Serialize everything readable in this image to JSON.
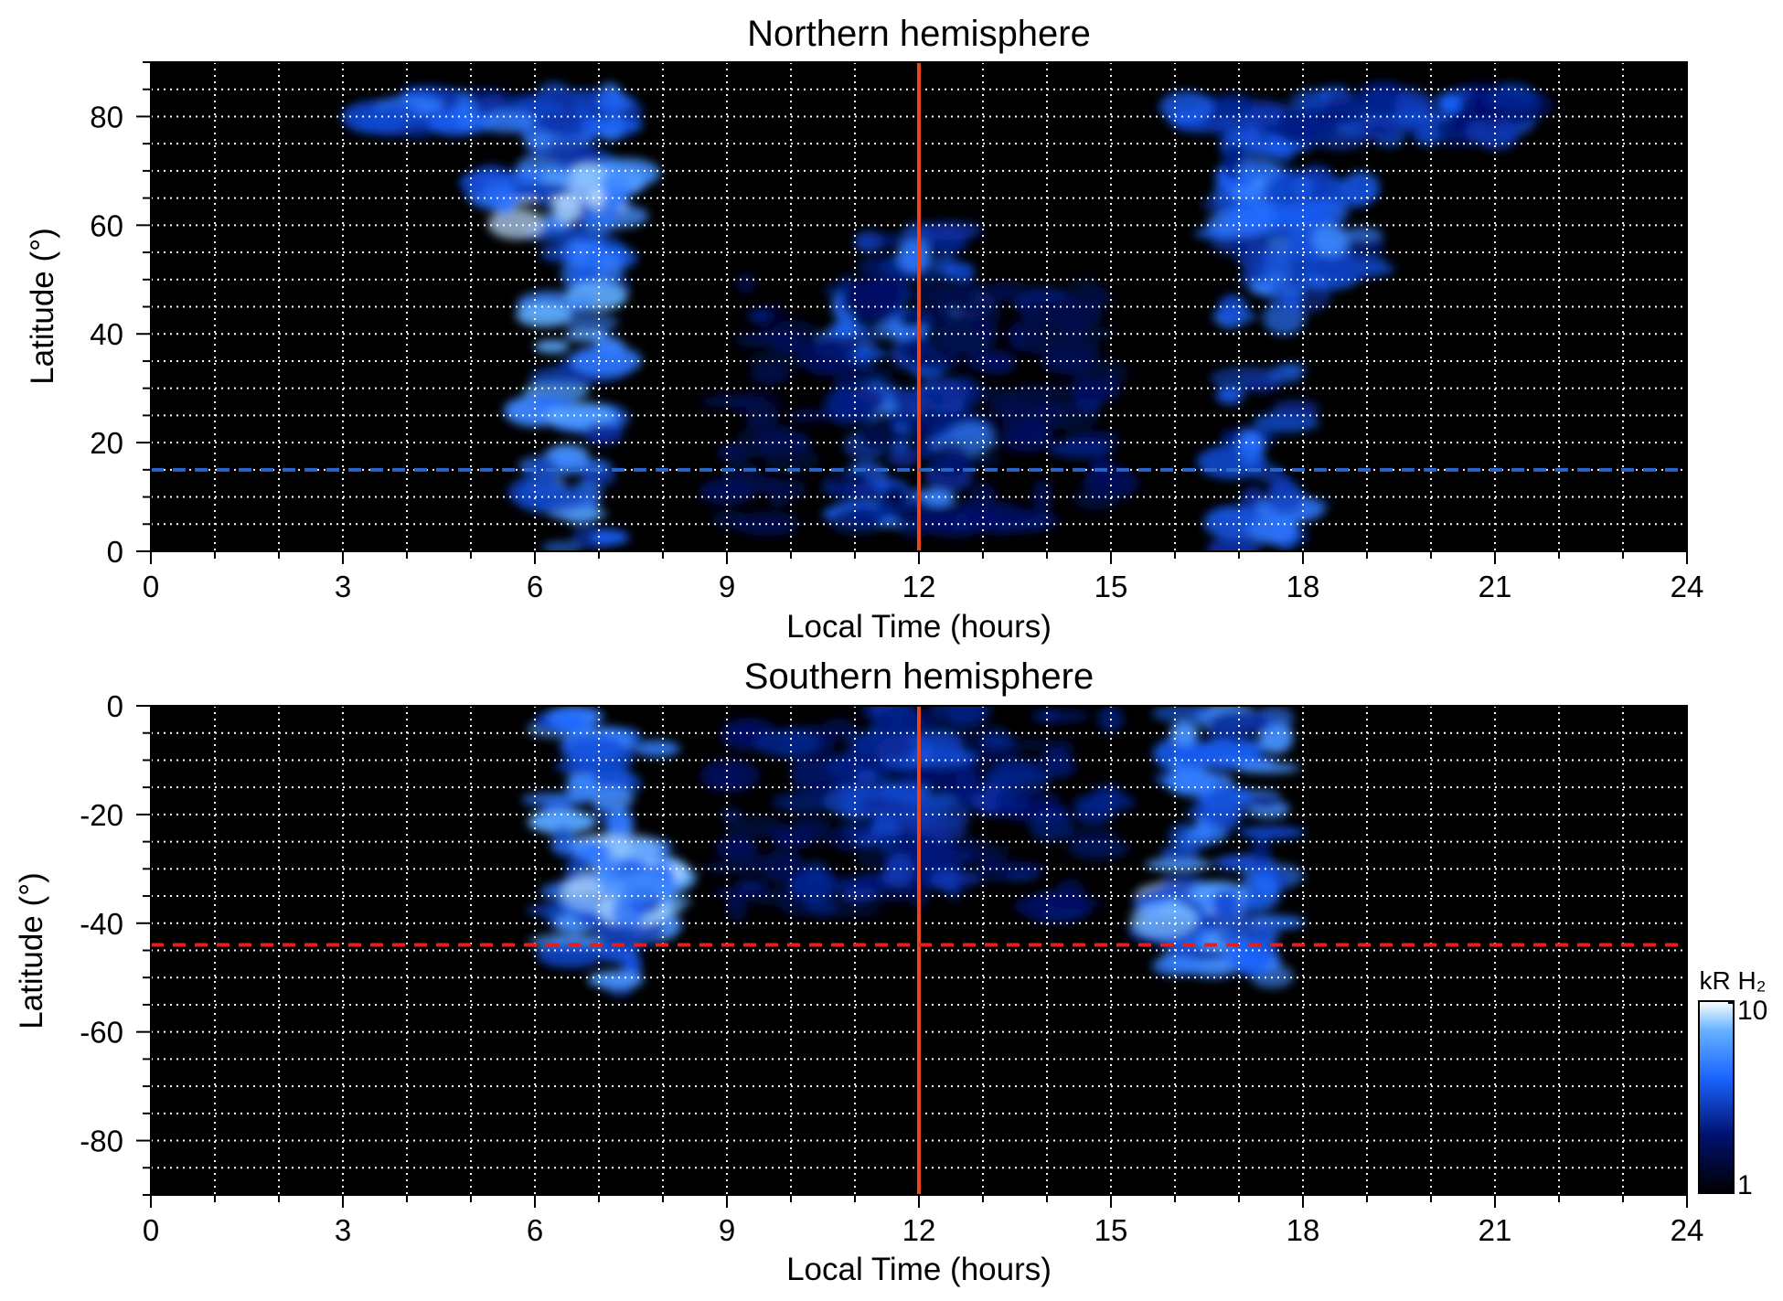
{
  "chart_data": [
    {
      "type": "heatmap",
      "title": "Northern hemisphere",
      "xlabel": "Local Time (hours)",
      "ylabel": "Latitude (°)",
      "xlim": [
        0,
        24
      ],
      "ylim": [
        0,
        90
      ],
      "xticks": [
        0,
        3,
        6,
        9,
        12,
        15,
        18,
        21,
        24
      ],
      "yticks": [
        0,
        20,
        40,
        60,
        80
      ],
      "grid": true,
      "background": "#000000",
      "reference_lines": [
        {
          "orientation": "vertical",
          "x": 12,
          "color": "#e8451c",
          "style": "solid"
        },
        {
          "orientation": "horizontal",
          "y": 15,
          "color": "#2a64c8",
          "style": "dashed"
        }
      ],
      "emission_regions": [
        {
          "x": [
            6.0,
            7.2
          ],
          "y": [
            0,
            80
          ],
          "intensity": 0.85
        },
        {
          "x": [
            3.5,
            7.5
          ],
          "y": [
            78,
            84
          ],
          "intensity": 0.7
        },
        {
          "x": [
            5.2,
            7.5
          ],
          "y": [
            60,
            70
          ],
          "intensity": 0.95
        },
        {
          "x": [
            10.8,
            12.8
          ],
          "y": [
            5,
            60
          ],
          "intensity": 0.7
        },
        {
          "x": [
            9.0,
            15.0
          ],
          "y": [
            5,
            50
          ],
          "intensity": 0.35
        },
        {
          "x": [
            16.8,
            18.0
          ],
          "y": [
            0,
            80
          ],
          "intensity": 0.7
        },
        {
          "x": [
            16.0,
            21.5
          ],
          "y": [
            76,
            84
          ],
          "intensity": 0.6
        },
        {
          "x": [
            16.8,
            19.0
          ],
          "y": [
            50,
            68
          ],
          "intensity": 0.75
        }
      ]
    },
    {
      "type": "heatmap",
      "title": "Southern hemisphere",
      "xlabel": "Local Time (hours)",
      "ylabel": "Latitude (°)",
      "xlim": [
        0,
        24
      ],
      "ylim": [
        -90,
        0
      ],
      "xticks": [
        0,
        3,
        6,
        9,
        12,
        15,
        18,
        21,
        24
      ],
      "yticks": [
        0,
        -20,
        -40,
        -60,
        -80
      ],
      "grid": true,
      "background": "#000000",
      "reference_lines": [
        {
          "orientation": "vertical",
          "x": 12,
          "color": "#e8451c",
          "style": "solid"
        },
        {
          "orientation": "horizontal",
          "y": -44,
          "color": "#e02020",
          "style": "dashed"
        }
      ],
      "emission_regions": [
        {
          "x": [
            6.3,
            8.0
          ],
          "y": [
            -52,
            0
          ],
          "intensity": 0.85
        },
        {
          "x": [
            6.8,
            8.0
          ],
          "y": [
            -38,
            -26
          ],
          "intensity": 0.95
        },
        {
          "x": [
            9.0,
            15.0
          ],
          "y": [
            -38,
            0
          ],
          "intensity": 0.4
        },
        {
          "x": [
            11.0,
            12.8
          ],
          "y": [
            -35,
            0
          ],
          "intensity": 0.55
        },
        {
          "x": [
            16.0,
            17.6
          ],
          "y": [
            -50,
            0
          ],
          "intensity": 0.8
        },
        {
          "x": [
            15.8,
            17.0
          ],
          "y": [
            -43,
            -33
          ],
          "intensity": 0.95
        }
      ]
    }
  ],
  "colorbar": {
    "unit": "kR H₂",
    "min_label": "1",
    "max_label": "10",
    "scale": "log"
  }
}
